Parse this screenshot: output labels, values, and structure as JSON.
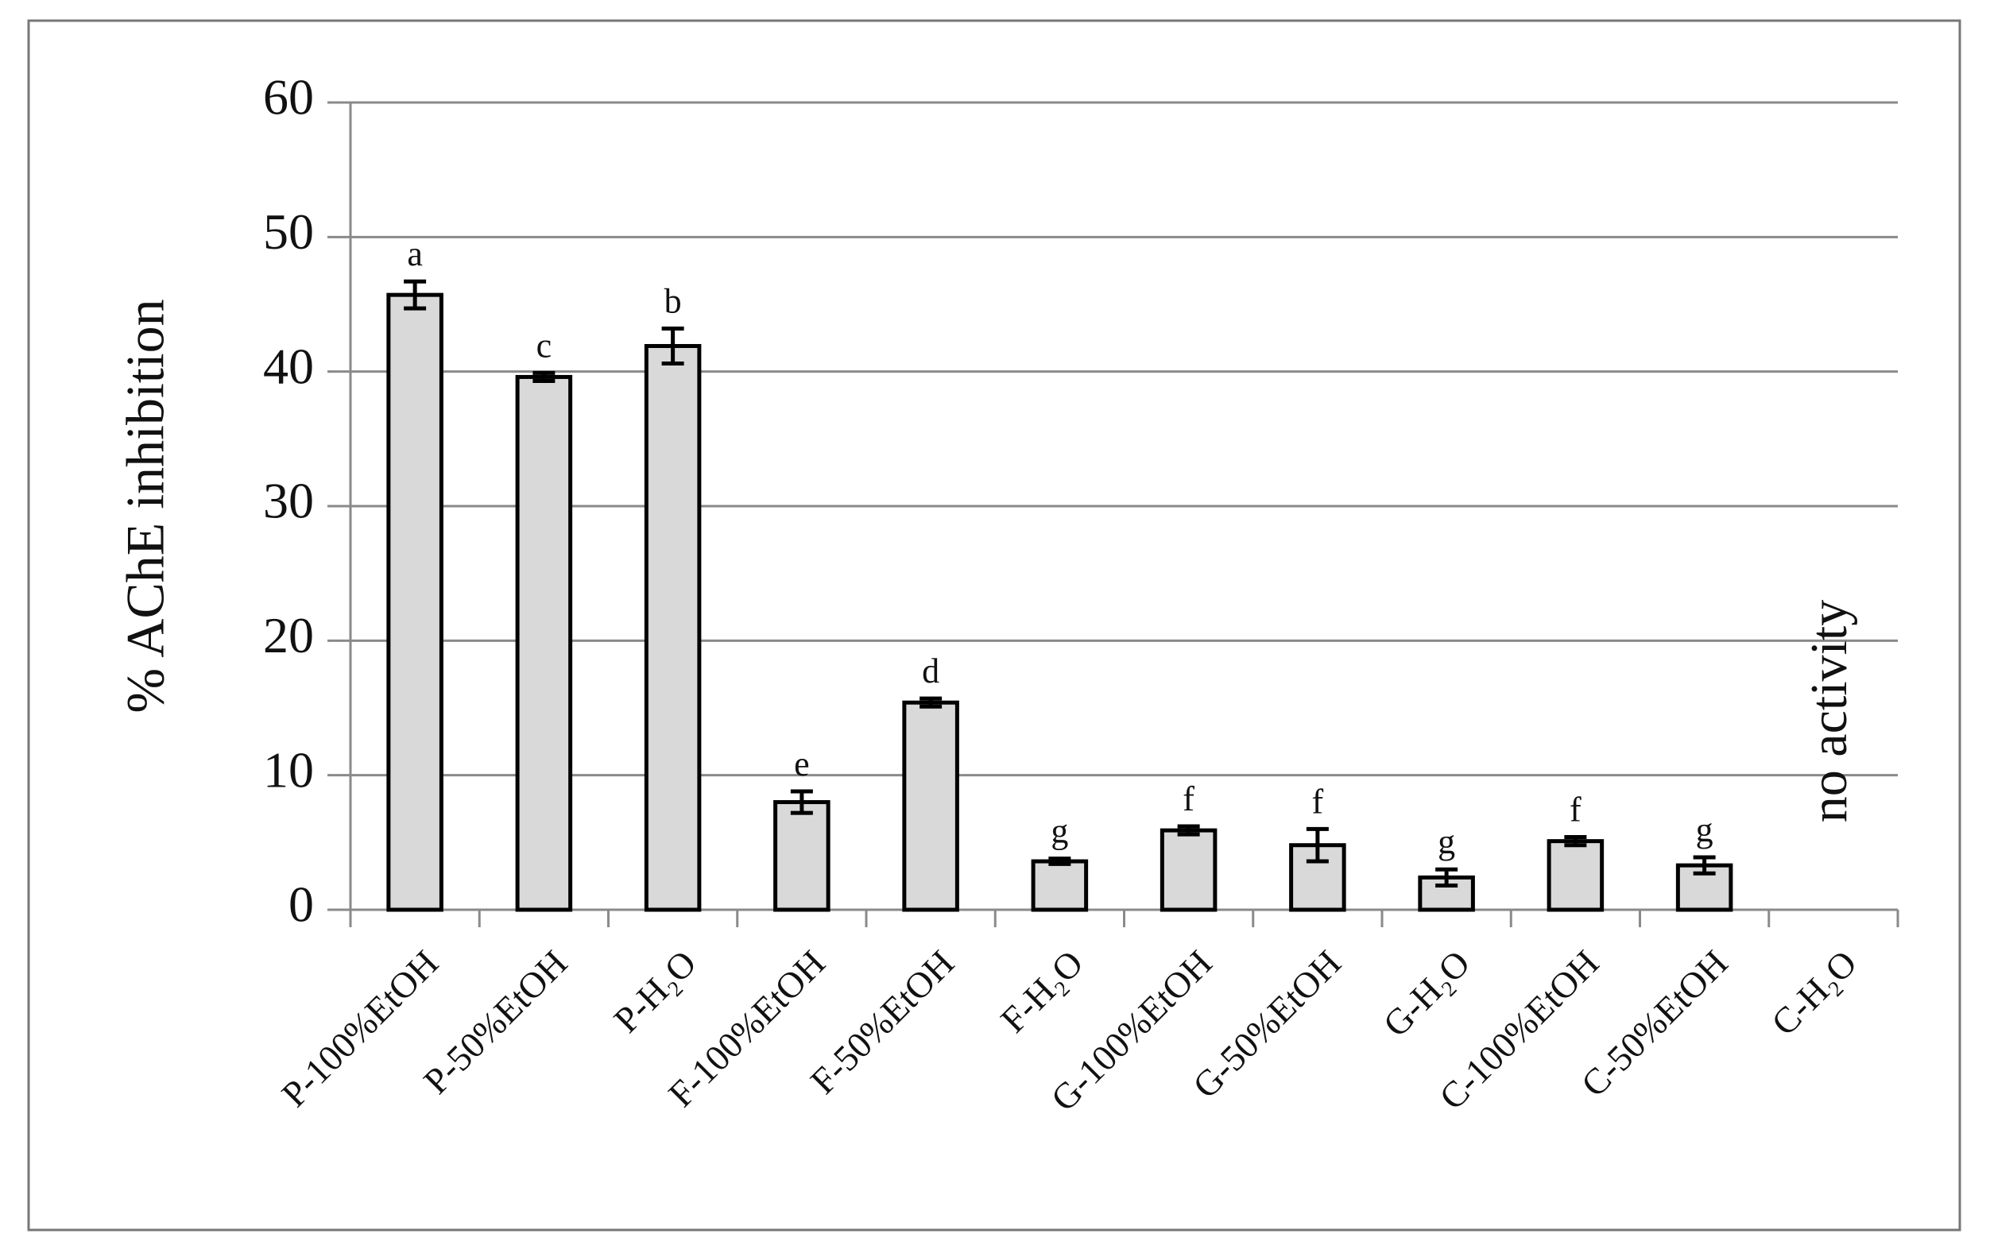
{
  "chart_data": {
    "type": "bar",
    "y_label": "% AChE inhibition",
    "annotation": "no activity",
    "categories": [
      "P-100%EtOH",
      "P-50%EtOH",
      "P-H₂O",
      "F-100%EtOH",
      "F-50%EtOH",
      "F-H₂O",
      "G-100%EtOH",
      "G-50%EtOH",
      "G-H₂O",
      "C-100%EtOH",
      "C-50%EtOH",
      "C-H₂O"
    ],
    "values": [
      45.7,
      39.6,
      41.9,
      8.0,
      15.4,
      3.6,
      5.9,
      4.8,
      2.4,
      5.1,
      3.3,
      null
    ],
    "errors": [
      1.0,
      0.3,
      1.3,
      0.8,
      0.3,
      0.2,
      0.3,
      1.2,
      0.6,
      0.3,
      0.6,
      null
    ],
    "significance_letters": [
      "a",
      "c",
      "b",
      "e",
      "d",
      "g",
      "f",
      "f",
      "g",
      "f",
      "g",
      null
    ],
    "color": "#d9d9d9",
    "ylim": [
      0,
      60
    ],
    "yticks": [
      0,
      10,
      20,
      30,
      40,
      50,
      60
    ],
    "grid": true
  }
}
